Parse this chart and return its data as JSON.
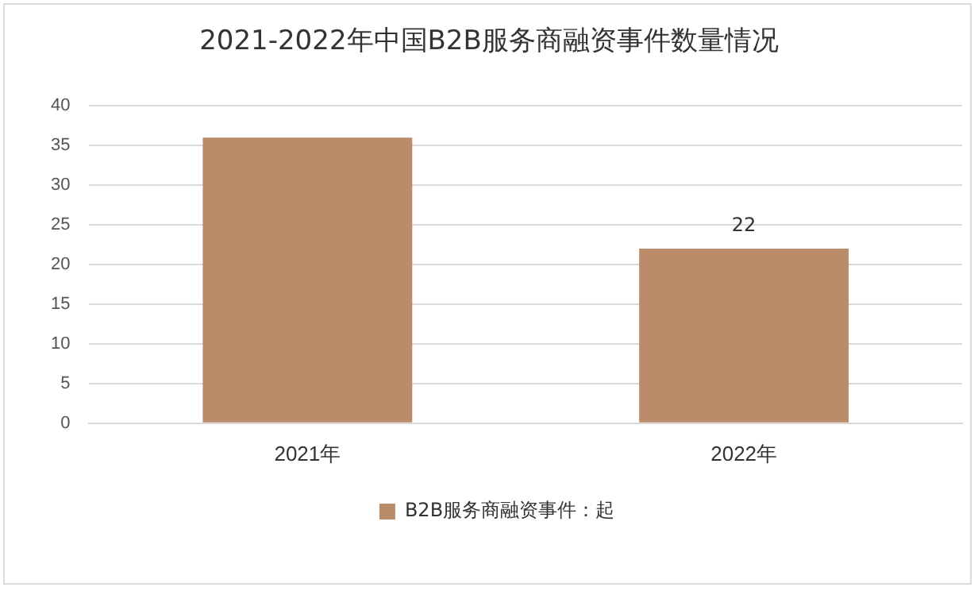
{
  "chart_data": {
    "type": "bar",
    "title": "2021-2022年中国B2B服务商融资事件数量情况",
    "categories": [
      "2021年",
      "2022年"
    ],
    "series": [
      {
        "name": "B2B服务商融资事件：起",
        "color": "#bb8c6a",
        "values": [
          36,
          22
        ],
        "value_labels": [
          null,
          "22"
        ]
      }
    ],
    "ylim": [
      0,
      40
    ],
    "yticks": [
      0,
      5,
      10,
      15,
      20,
      25,
      30,
      35,
      40
    ],
    "grid": "y",
    "legend": "bottom"
  }
}
